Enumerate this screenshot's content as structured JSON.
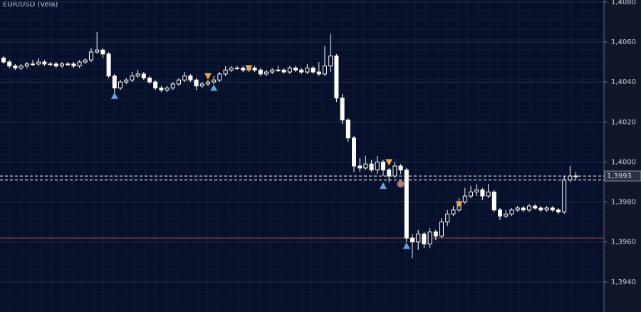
{
  "chart_data": {
    "type": "candlestick",
    "title": "EUR/USD (Vela)",
    "ylim": [
      1.3925,
      1.4081
    ],
    "yticks": [
      {
        "value": 1.408,
        "label": "1,4080"
      },
      {
        "value": 1.406,
        "label": "1,4060"
      },
      {
        "value": 1.404,
        "label": "1,4040"
      },
      {
        "value": 1.402,
        "label": "1,4020"
      },
      {
        "value": 1.4,
        "label": "1,4000"
      },
      {
        "value": 1.398,
        "label": "1,3980"
      },
      {
        "value": 1.396,
        "label": "1,3960"
      },
      {
        "value": 1.394,
        "label": "1,3940"
      }
    ],
    "grid": true,
    "color": "#ffffff",
    "open": [
      1.4052,
      1.405,
      1.4048,
      1.4047,
      1.4048,
      1.4049,
      1.4049,
      1.405,
      1.4049,
      1.4049,
      1.4048,
      1.4049,
      1.4049,
      1.4048,
      1.405,
      1.4051,
      1.4055,
      1.4056,
      1.4054,
      1.4043,
      1.4037,
      1.404,
      1.4041,
      1.4043,
      1.4044,
      1.4042,
      1.404,
      1.4037,
      1.4036,
      1.4037,
      1.4039,
      1.4041,
      1.4043,
      1.4041,
      1.4038,
      1.4039,
      1.404,
      1.4041,
      1.4044,
      1.4046,
      1.4047,
      1.4047,
      1.4046,
      1.4047,
      1.4046,
      1.4044,
      1.4045,
      1.4046,
      1.4046,
      1.4045,
      1.4047,
      1.4046,
      1.4045,
      1.4047,
      1.4045,
      1.4044,
      1.4048,
      1.4053,
      1.4032,
      1.4021,
      1.4012,
      1.3998,
      1.3997,
      1.3999,
      1.3996,
      1.4,
      1.3996,
      1.3993,
      1.3998,
      1.3996,
      1.3962,
      1.396,
      1.3964,
      1.3959,
      1.3965,
      1.3963,
      1.397,
      1.3974,
      1.3976,
      1.398,
      1.3983,
      1.3985,
      1.3986,
      1.3983,
      1.3985,
      1.3976,
      1.3973,
      1.3974,
      1.3976,
      1.3977,
      1.3976,
      1.3978,
      1.3977,
      1.3976,
      1.3977,
      1.3976,
      1.3975,
      1.3991,
      1.3993
    ],
    "close": [
      1.405,
      1.4048,
      1.4047,
      1.4048,
      1.4049,
      1.4049,
      1.405,
      1.4049,
      1.4049,
      1.4048,
      1.4049,
      1.4049,
      1.4048,
      1.405,
      1.4051,
      1.4055,
      1.4056,
      1.4054,
      1.4043,
      1.4037,
      1.404,
      1.4041,
      1.4043,
      1.4044,
      1.4042,
      1.404,
      1.4037,
      1.4036,
      1.4037,
      1.4039,
      1.4041,
      1.4043,
      1.4041,
      1.4038,
      1.4039,
      1.404,
      1.4041,
      1.4044,
      1.4046,
      1.4047,
      1.4047,
      1.4046,
      1.4047,
      1.4046,
      1.4044,
      1.4045,
      1.4046,
      1.4046,
      1.4045,
      1.4047,
      1.4046,
      1.4045,
      1.4047,
      1.4045,
      1.4044,
      1.4048,
      1.4053,
      1.4032,
      1.4021,
      1.4012,
      1.3998,
      1.3997,
      1.3999,
      1.3996,
      1.4,
      1.3996,
      1.3993,
      1.3998,
      1.3996,
      1.3962,
      1.396,
      1.3964,
      1.3959,
      1.3965,
      1.3963,
      1.397,
      1.3974,
      1.3976,
      1.398,
      1.3983,
      1.3985,
      1.3986,
      1.3983,
      1.3985,
      1.3976,
      1.3973,
      1.3974,
      1.3976,
      1.3977,
      1.3976,
      1.3978,
      1.3977,
      1.3976,
      1.3977,
      1.3976,
      1.3975,
      1.3991,
      1.3993,
      1.3993
    ],
    "high": [
      1.4053,
      1.4051,
      1.4049,
      1.4049,
      1.405,
      1.4051,
      1.4052,
      1.4051,
      1.405,
      1.405,
      1.405,
      1.405,
      1.405,
      1.4051,
      1.4052,
      1.4057,
      1.4065,
      1.4057,
      1.4055,
      1.4044,
      1.4041,
      1.4042,
      1.4045,
      1.4046,
      1.4045,
      1.4043,
      1.4041,
      1.4038,
      1.4038,
      1.404,
      1.4042,
      1.4045,
      1.4044,
      1.4042,
      1.404,
      1.4041,
      1.4043,
      1.4045,
      1.4048,
      1.4048,
      1.4048,
      1.4048,
      1.4048,
      1.4048,
      1.4047,
      1.4046,
      1.4047,
      1.4048,
      1.4047,
      1.4048,
      1.4048,
      1.4047,
      1.4049,
      1.4048,
      1.405,
      1.4058,
      1.4064,
      1.4054,
      1.4034,
      1.4022,
      1.4013,
      1.4002,
      1.4003,
      1.4001,
      1.4003,
      1.4001,
      1.3997,
      1.4,
      1.3999,
      1.3997,
      1.3964,
      1.3966,
      1.3965,
      1.3967,
      1.3966,
      1.3972,
      1.3976,
      1.3978,
      1.3982,
      1.3987,
      1.3988,
      1.3989,
      1.3987,
      1.3989,
      1.3986,
      1.3977,
      1.3976,
      1.3977,
      1.3978,
      1.3978,
      1.3979,
      1.3979,
      1.3978,
      1.3978,
      1.3978,
      1.3977,
      1.3993,
      1.3998,
      1.3995
    ],
    "low": [
      1.4049,
      1.4047,
      1.4046,
      1.4046,
      1.4047,
      1.4048,
      1.4048,
      1.4048,
      1.4048,
      1.4047,
      1.4047,
      1.4048,
      1.4047,
      1.4047,
      1.4049,
      1.405,
      1.4054,
      1.4052,
      1.4042,
      1.4034,
      1.4036,
      1.4039,
      1.404,
      1.4042,
      1.4041,
      1.4039,
      1.4036,
      1.4035,
      1.4035,
      1.4036,
      1.4038,
      1.404,
      1.404,
      1.4036,
      1.4037,
      1.4038,
      1.4039,
      1.404,
      1.4043,
      1.4045,
      1.4046,
      1.4045,
      1.4045,
      1.4045,
      1.4043,
      1.4043,
      1.4044,
      1.4045,
      1.4044,
      1.4044,
      1.4045,
      1.4044,
      1.4044,
      1.4044,
      1.4043,
      1.4043,
      1.4045,
      1.403,
      1.4019,
      1.401,
      1.3995,
      1.3995,
      1.3996,
      1.3995,
      1.3994,
      1.3993,
      1.399,
      1.3992,
      1.3994,
      1.396,
      1.3952,
      1.3956,
      1.3957,
      1.3957,
      1.3961,
      1.3962,
      1.3968,
      1.3973,
      1.3975,
      1.3979,
      1.3982,
      1.3983,
      1.3981,
      1.3982,
      1.3975,
      1.3971,
      1.3972,
      1.3973,
      1.3975,
      1.3975,
      1.3975,
      1.3976,
      1.3975,
      1.3975,
      1.3975,
      1.3974,
      1.3974,
      1.399,
      1.3991
    ],
    "signals": [
      {
        "shape": "triangle-up",
        "color": "#5fa8e8",
        "index": 19,
        "price": 1.4033
      },
      {
        "shape": "triangle-down",
        "color": "#e8a850",
        "index": 35,
        "price": 1.4043
      },
      {
        "shape": "triangle-up",
        "color": "#5fa8e8",
        "index": 36,
        "price": 1.4037
      },
      {
        "shape": "triangle-down",
        "color": "#e8a850",
        "index": 42,
        "price": 1.4047
      },
      {
        "shape": "triangle-up",
        "color": "#5fa8e8",
        "index": 65,
        "price": 1.3988
      },
      {
        "shape": "triangle-down",
        "color": "#e8a850",
        "index": 66,
        "price": 1.4
      },
      {
        "shape": "circle",
        "color": "#b07878",
        "index": 68,
        "price": 1.3989
      },
      {
        "shape": "triangle-up",
        "color": "#5fa8e8",
        "index": 69,
        "price": 1.3958
      },
      {
        "shape": "triangle-down",
        "color": "#e8a850",
        "index": 78,
        "price": 1.3979
      }
    ],
    "price_lines": [
      {
        "value": 1.3993,
        "label": "1,3993",
        "color": "#ffffff",
        "style": "dashed"
      },
      {
        "value": 1.3991,
        "color": "#ffffff",
        "style": "dashed"
      },
      {
        "value": 1.3962,
        "color": "#c03a3a",
        "style": "solid"
      }
    ]
  }
}
